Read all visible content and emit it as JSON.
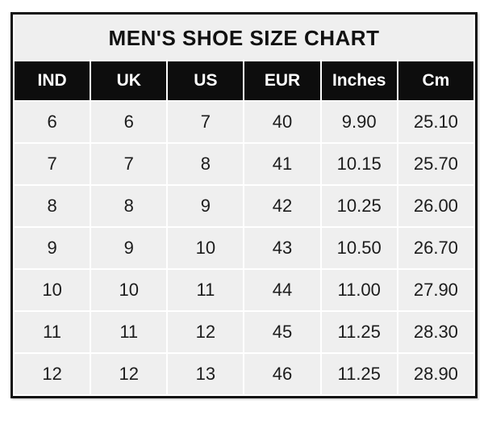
{
  "page": {
    "background_color": "#ffffff"
  },
  "colors": {
    "table_border": "#111111",
    "title_background": "#efefef",
    "title_text": "#111111",
    "header_background": "#0d0d0d",
    "header_text": "#ffffff",
    "cell_background": "#efefef",
    "cell_text": "#1c1c1c",
    "gutter": "#ffffff"
  },
  "chart_data": {
    "type": "table",
    "title": "MEN'S SHOE SIZE CHART",
    "columns": [
      "IND",
      "UK",
      "US",
      "EUR",
      "Inches",
      "Cm"
    ],
    "rows": [
      [
        "6",
        "6",
        "7",
        "40",
        "9.90",
        "25.10"
      ],
      [
        "7",
        "7",
        "8",
        "41",
        "10.15",
        "25.70"
      ],
      [
        "8",
        "8",
        "9",
        "42",
        "10.25",
        "26.00"
      ],
      [
        "9",
        "9",
        "10",
        "43",
        "10.50",
        "26.70"
      ],
      [
        "10",
        "10",
        "11",
        "44",
        "11.00",
        "27.90"
      ],
      [
        "11",
        "11",
        "12",
        "45",
        "11.25",
        "28.30"
      ],
      [
        "12",
        "12",
        "13",
        "46",
        "11.25",
        "28.90"
      ]
    ],
    "layout": {
      "title_row": true,
      "header_style": "inverse",
      "grid": "white-gutters"
    }
  }
}
